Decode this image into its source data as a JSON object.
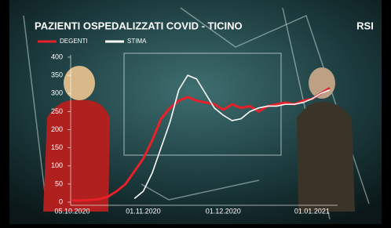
{
  "logo": "RSI",
  "chart_data": {
    "type": "line",
    "title": "PAZIENTI OSPEDALIZZATI COVID - TICINO",
    "categories": [
      "05.10.2020",
      null,
      null,
      null,
      null,
      null,
      null,
      null,
      "01.11.2020",
      null,
      null,
      null,
      null,
      null,
      null,
      null,
      null,
      "01.12.2020",
      null,
      null,
      null,
      null,
      null,
      null,
      null,
      null,
      null,
      "01.01.2021",
      null,
      null
    ],
    "series": [
      {
        "name": "DEGENTI",
        "color": "#e8202a",
        "values": [
          5,
          5,
          6,
          8,
          15,
          30,
          50,
          85,
          120,
          170,
          230,
          260,
          280,
          290,
          280,
          275,
          270,
          255,
          270,
          260,
          265,
          250,
          265,
          270,
          275,
          270,
          280,
          285,
          300,
          315
        ]
      },
      {
        "name": "STIMA",
        "color": "#ffffff",
        "values": [
          null,
          null,
          null,
          null,
          null,
          null,
          null,
          10,
          30,
          80,
          150,
          220,
          310,
          350,
          340,
          300,
          260,
          240,
          225,
          230,
          250,
          260,
          265,
          265,
          270,
          270,
          275,
          285,
          300,
          310
        ]
      }
    ],
    "ylim": [
      0,
      400
    ],
    "yticks": [
      0,
      50,
      100,
      150,
      200,
      250,
      300,
      350,
      400
    ],
    "grid": false
  }
}
